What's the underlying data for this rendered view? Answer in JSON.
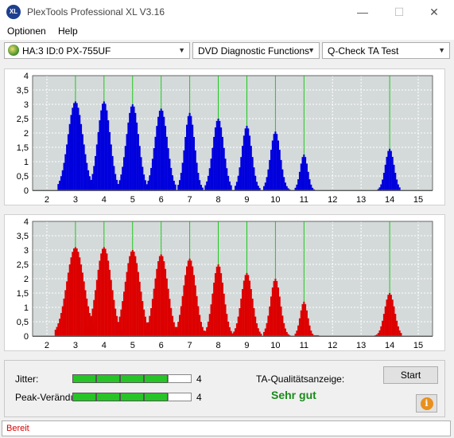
{
  "window": {
    "title": "PlexTools Professional XL V3.16",
    "icon_text": "XL",
    "minimize": "—",
    "maximize": "☐",
    "close": "✕"
  },
  "menu": [
    {
      "label": "Optionen"
    },
    {
      "label": "Help"
    }
  ],
  "toolbar": {
    "drive": "HA:3 ID:0  PX-755UF",
    "function": "DVD Diagnostic Functions",
    "test": "Q-Check TA Test",
    "arrow": "▼"
  },
  "chart_data": [
    {
      "type": "bar",
      "title": "",
      "color": "#0000dd",
      "xlim": [
        1.5,
        15.5
      ],
      "ylim": [
        0,
        4
      ],
      "xticks": [
        "2",
        "3",
        "4",
        "5",
        "6",
        "7",
        "8",
        "9",
        "10",
        "11",
        "12",
        "13",
        "14",
        "15"
      ],
      "yticks": [
        "0",
        "0,5",
        "1",
        "1,5",
        "2",
        "2,5",
        "3",
        "3,5",
        "4"
      ],
      "marker_lines": [
        3,
        4,
        5,
        6,
        7,
        8,
        9,
        10,
        11,
        14
      ],
      "peaks": [
        {
          "x": 3.0,
          "height": 3.1,
          "from": 2.4,
          "to": 3.65
        },
        {
          "x": 4.0,
          "height": 3.1,
          "from": 3.5,
          "to": 4.55
        },
        {
          "x": 5.0,
          "height": 3.0,
          "from": 4.5,
          "to": 5.55
        },
        {
          "x": 6.0,
          "height": 2.85,
          "from": 5.5,
          "to": 6.5
        },
        {
          "x": 7.0,
          "height": 2.7,
          "from": 6.6,
          "to": 7.45
        },
        {
          "x": 8.0,
          "height": 2.5,
          "from": 7.55,
          "to": 8.45
        },
        {
          "x": 9.0,
          "height": 2.25,
          "from": 8.6,
          "to": 9.45
        },
        {
          "x": 10.0,
          "height": 2.05,
          "from": 9.6,
          "to": 10.5
        },
        {
          "x": 11.0,
          "height": 1.25,
          "from": 10.7,
          "to": 11.35
        },
        {
          "x": 14.0,
          "height": 1.45,
          "from": 13.6,
          "to": 14.35
        }
      ]
    },
    {
      "type": "bar",
      "title": "",
      "color": "#dd0000",
      "xlim": [
        1.5,
        15.5
      ],
      "ylim": [
        0,
        4
      ],
      "xticks": [
        "2",
        "3",
        "4",
        "5",
        "6",
        "7",
        "8",
        "9",
        "10",
        "11",
        "12",
        "13",
        "14",
        "15"
      ],
      "yticks": [
        "0",
        "0,5",
        "1",
        "1,5",
        "2",
        "2,5",
        "3",
        "3,5",
        "4"
      ],
      "marker_lines": [
        3,
        4,
        5,
        6,
        7,
        8,
        9,
        10,
        11,
        14
      ],
      "peaks": [
        {
          "x": 3.0,
          "height": 3.1,
          "from": 2.3,
          "to": 3.7
        },
        {
          "x": 4.0,
          "height": 3.1,
          "from": 3.4,
          "to": 4.6
        },
        {
          "x": 5.0,
          "height": 3.0,
          "from": 4.4,
          "to": 5.6
        },
        {
          "x": 6.0,
          "height": 2.85,
          "from": 5.45,
          "to": 6.6
        },
        {
          "x": 7.0,
          "height": 2.7,
          "from": 6.5,
          "to": 7.5
        },
        {
          "x": 8.0,
          "height": 2.5,
          "from": 7.55,
          "to": 8.5
        },
        {
          "x": 9.0,
          "height": 2.2,
          "from": 8.55,
          "to": 9.5
        },
        {
          "x": 10.0,
          "height": 2.0,
          "from": 9.6,
          "to": 10.5
        },
        {
          "x": 11.0,
          "height": 1.2,
          "from": 10.7,
          "to": 11.5
        },
        {
          "x": 14.0,
          "height": 1.5,
          "from": 13.5,
          "to": 14.4
        }
      ]
    }
  ],
  "results": {
    "jitter_label": "Jitter:",
    "jitter_value": "4",
    "jitter_level": 4,
    "peak_label": "Peak-Verändı",
    "peak_value": "4",
    "peak_level": 4,
    "meter_max": 5,
    "quality_label": "TA-Qualitätsanzeige:",
    "quality_value": "Sehr gut",
    "start_button": "Start",
    "info_icon": "i"
  },
  "status": {
    "text": "Bereit"
  }
}
